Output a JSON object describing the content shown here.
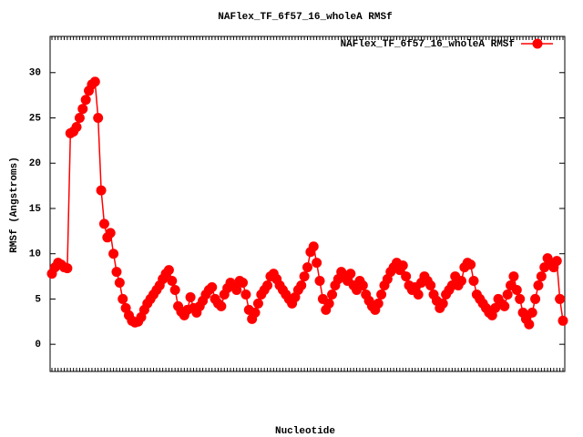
{
  "chart_data": {
    "type": "line",
    "title": "NAFlex_TF_6f57_16_wholeA RMSf",
    "x_label": "Nucleotide",
    "y_label": "RMSf (Angstroms)",
    "ylim": [
      -3,
      34
    ],
    "yticks": [
      0,
      5,
      10,
      15,
      20,
      25,
      30
    ],
    "legend": "top-right",
    "series": [
      {
        "name": "NAFlex_TF_6f57_16_wholeA RMSf",
        "color": "#ff0000",
        "values": [
          7.8,
          8.5,
          9.0,
          8.8,
          8.5,
          8.4,
          23.3,
          23.5,
          24,
          25,
          26,
          27,
          28,
          28.7,
          29,
          25,
          17,
          13.3,
          11.8,
          12.3,
          10,
          8,
          6.8,
          5,
          4,
          3.2,
          2.6,
          2.4,
          2.5,
          3,
          3.8,
          4.5,
          5,
          5.5,
          6,
          6.5,
          7.2,
          7.8,
          8.2,
          7,
          6,
          4.2,
          3.6,
          3.2,
          3.8,
          5.2,
          4,
          3.5,
          4.2,
          4.8,
          5.5,
          6,
          6.3,
          5,
          4.5,
          4.2,
          5.5,
          6.2,
          6.8,
          6.5,
          6,
          7,
          6.8,
          5.5,
          3.8,
          2.8,
          3.5,
          4.5,
          5.5,
          6,
          6.5,
          7.5,
          7.8,
          7.2,
          6.5,
          6,
          5.5,
          5,
          4.5,
          5.2,
          6,
          6.5,
          7.5,
          8.5,
          10.2,
          10.8,
          9,
          7,
          5,
          3.8,
          4.5,
          5.5,
          6.5,
          7.2,
          8,
          7.5,
          7,
          7.8,
          6.5,
          6,
          7,
          6.5,
          5.5,
          4.8,
          4.2,
          3.8,
          4.5,
          5.5,
          6.5,
          7.2,
          8,
          8.5,
          9,
          8.2,
          8.7,
          7.5,
          6.5,
          6,
          6.3,
          5.5,
          6.8,
          7.5,
          7,
          6.5,
          5.5,
          4.8,
          4,
          4.5,
          5.5,
          6,
          6.5,
          7.5,
          6.5,
          7,
          8.5,
          9,
          8.8,
          7,
          5.5,
          5,
          4.5,
          4,
          3.5,
          3.2,
          4,
          5,
          4.5,
          4.2,
          5.5,
          6.5,
          7.5,
          6,
          5,
          3.5,
          2.8,
          2.2,
          3.5,
          5,
          6.5,
          7.5,
          8.5,
          9.5,
          9,
          8.5,
          9.2,
          5,
          2.6
        ]
      }
    ]
  }
}
